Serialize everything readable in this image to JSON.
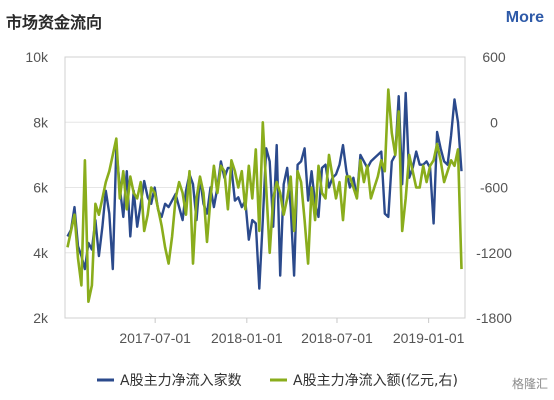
{
  "header": {
    "title": "市场资金流向",
    "more_label": "More"
  },
  "watermark": "格隆汇",
  "colors": {
    "accent": "#2e5aa8",
    "series1": "#2b4a8c",
    "series2": "#8aad1c",
    "grid": "#e6e6e6"
  },
  "chart_data": {
    "type": "line",
    "title": "",
    "x_ticks": [
      "2017-07-01",
      "2018-01-01",
      "2018-07-01",
      "2019-01-01"
    ],
    "x_range": [
      "2017-01-01",
      "2019-03-15"
    ],
    "y_left": {
      "ticks": [
        "10k",
        "8k",
        "6k",
        "4k",
        "2k"
      ],
      "ylim": [
        2000,
        10000
      ]
    },
    "y_right": {
      "ticks": [
        "600",
        "0",
        "-600",
        "-1200",
        "-1800"
      ],
      "ylim": [
        -1800,
        600
      ]
    },
    "grid": true,
    "legend_position": "bottom",
    "x": [
      "2017-01-06",
      "2017-01-13",
      "2017-01-20",
      "2017-01-27",
      "2017-02-03",
      "2017-02-10",
      "2017-02-17",
      "2017-02-24",
      "2017-03-03",
      "2017-03-10",
      "2017-03-17",
      "2017-03-24",
      "2017-03-31",
      "2017-04-07",
      "2017-04-14",
      "2017-04-21",
      "2017-04-28",
      "2017-05-05",
      "2017-05-12",
      "2017-05-19",
      "2017-05-26",
      "2017-06-02",
      "2017-06-09",
      "2017-06-16",
      "2017-06-23",
      "2017-06-30",
      "2017-07-07",
      "2017-07-14",
      "2017-07-21",
      "2017-07-28",
      "2017-08-04",
      "2017-08-11",
      "2017-08-18",
      "2017-08-25",
      "2017-09-01",
      "2017-09-08",
      "2017-09-15",
      "2017-09-22",
      "2017-09-29",
      "2017-10-06",
      "2017-10-13",
      "2017-10-20",
      "2017-10-27",
      "2017-11-03",
      "2017-11-10",
      "2017-11-17",
      "2017-11-24",
      "2017-12-01",
      "2017-12-08",
      "2017-12-15",
      "2017-12-22",
      "2017-12-29",
      "2018-01-05",
      "2018-01-12",
      "2018-01-19",
      "2018-01-26",
      "2018-02-02",
      "2018-02-09",
      "2018-02-16",
      "2018-02-23",
      "2018-03-02",
      "2018-03-09",
      "2018-03-16",
      "2018-03-23",
      "2018-03-30",
      "2018-04-06",
      "2018-04-13",
      "2018-04-20",
      "2018-04-27",
      "2018-05-04",
      "2018-05-11",
      "2018-05-18",
      "2018-05-25",
      "2018-06-01",
      "2018-06-08",
      "2018-06-15",
      "2018-06-22",
      "2018-06-29",
      "2018-07-06",
      "2018-07-13",
      "2018-07-20",
      "2018-07-27",
      "2018-08-03",
      "2018-08-10",
      "2018-08-17",
      "2018-08-24",
      "2018-08-31",
      "2018-09-07",
      "2018-09-14",
      "2018-09-21",
      "2018-09-28",
      "2018-10-05",
      "2018-10-12",
      "2018-10-19",
      "2018-10-26",
      "2018-11-02",
      "2018-11-09",
      "2018-11-16",
      "2018-11-23",
      "2018-11-30",
      "2018-12-07",
      "2018-12-14",
      "2018-12-21",
      "2018-12-28",
      "2019-01-04",
      "2019-01-11",
      "2019-01-18",
      "2019-01-25",
      "2019-02-01",
      "2019-02-08",
      "2019-02-15",
      "2019-02-22",
      "2019-03-01",
      "2019-03-08"
    ],
    "series": [
      {
        "name": "A股主力净流入家数",
        "axis": "left",
        "color": "#2b4a8c",
        "values": [
          4500,
          4700,
          5400,
          4200,
          3900,
          3500,
          4300,
          4100,
          5000,
          3900,
          4800,
          5900,
          5200,
          3500,
          7200,
          6000,
          5100,
          6500,
          4500,
          5900,
          4800,
          5500,
          6200,
          5700,
          5500,
          6000,
          5300,
          5100,
          5500,
          5400,
          5600,
          5800,
          5400,
          5000,
          5900,
          6400,
          6100,
          5000,
          6300,
          5500,
          5200,
          6000,
          5400,
          6000,
          6800,
          6300,
          6600,
          6600,
          5600,
          5700,
          5400,
          5600,
          4400,
          5000,
          4900,
          2900,
          5000,
          7200,
          6800,
          4800,
          7300,
          3300,
          6100,
          6600,
          5400,
          3300,
          6700,
          6800,
          7200,
          5600,
          6500,
          5500,
          5100,
          6600,
          6700,
          6000,
          6300,
          6400,
          6700,
          7300,
          6500,
          6000,
          6300,
          5700,
          7000,
          6800,
          6600,
          6800,
          6900,
          7000,
          7100,
          5200,
          5100,
          6800,
          7000,
          8800,
          6100,
          8900,
          6300,
          6600,
          7100,
          6700,
          6700,
          6800,
          6600,
          4900,
          7700,
          7200,
          6800,
          6700,
          7600,
          8700,
          8000,
          6500
        ]
      },
      {
        "name": "A股主力净流入额(亿元,右)",
        "axis": "right",
        "color": "#8aad1c",
        "values": [
          -1150,
          -1000,
          -850,
          -1250,
          -1500,
          -350,
          -1650,
          -1500,
          -750,
          -850,
          -700,
          -550,
          -450,
          -300,
          -150,
          -700,
          -450,
          -800,
          -500,
          -650,
          -700,
          -550,
          -1000,
          -850,
          -600,
          -650,
          -800,
          -950,
          -1150,
          -1300,
          -1050,
          -700,
          -550,
          -650,
          -850,
          -450,
          -1300,
          -700,
          -500,
          -650,
          -1100,
          -700,
          -400,
          -650,
          -400,
          -450,
          -800,
          -350,
          -450,
          -600,
          -450,
          -800,
          -400,
          -700,
          -250,
          -1000,
          0,
          -600,
          -1200,
          -700,
          -550,
          -650,
          -850,
          -700,
          -500,
          -1000,
          -450,
          -550,
          -900,
          -1300,
          -600,
          -900,
          -400,
          -650,
          -700,
          -300,
          -500,
          -700,
          -550,
          -900,
          -500,
          -500,
          -600,
          -700,
          -350,
          -550,
          -400,
          -700,
          -600,
          -500,
          -350,
          -450,
          300,
          -100,
          -300,
          100,
          -1000,
          -700,
          -300,
          -450,
          -600,
          -600,
          -400,
          -550,
          -400,
          -350,
          -200,
          -350,
          -550,
          -450,
          -350,
          -400,
          -250,
          -1350
        ]
      }
    ]
  }
}
